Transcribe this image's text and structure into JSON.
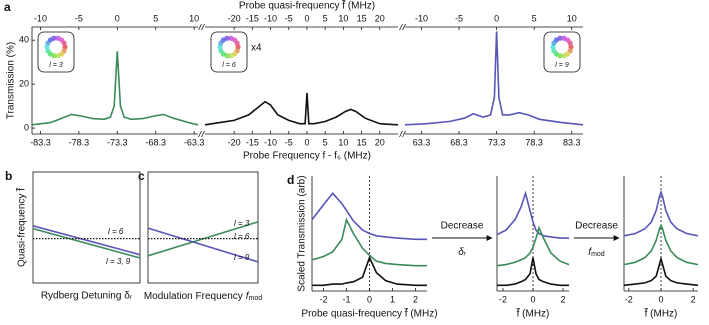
{
  "chart_data": [
    {
      "type": "line",
      "panel_label": "a",
      "y_label": "Transmission (%)",
      "x_label": "Probe Frequency f - f₆ (MHz)",
      "x2_label": "Probe quasi-frequency f̃ (MHz)",
      "ylim": [
        -2.7,
        46
      ],
      "yticks": [
        0,
        20,
        40
      ],
      "subplots": [
        {
          "xlim": [
            -84.4,
            -62.8
          ],
          "xticks": [
            -83.3,
            -78.3,
            -73.3,
            -68.3,
            -63.3
          ],
          "x2lim": [
            -11.1,
            10.5
          ],
          "x2ticks": [
            -10,
            -5,
            0,
            5,
            10
          ],
          "inset_label": "l = 3",
          "series": [
            {
              "color": "#3a8a5c",
              "x": [
                -84.4,
                -82,
                -80.5,
                -79.3,
                -78,
                -76.5,
                -75,
                -74.2,
                -73.7,
                -73.3,
                -72.9,
                -72.4,
                -71.5,
                -70,
                -68.5,
                -67.3,
                -66,
                -64,
                -62.8
              ],
              "values": [
                1.5,
                2.5,
                4.5,
                6.2,
                5.5,
                4.3,
                4,
                5,
                10,
                35,
                10,
                5,
                4,
                4.3,
                5.5,
                6.2,
                4.5,
                2.5,
                1.5
              ]
            }
          ]
        },
        {
          "xlim": [
            -28,
            25
          ],
          "xticks": [
            -20,
            -15,
            -10,
            -5,
            0,
            5,
            10,
            15,
            20
          ],
          "x2lim": [
            -28,
            25
          ],
          "x2ticks": [
            -20,
            -15,
            -10,
            -5,
            0,
            5,
            10,
            15,
            20
          ],
          "inset_label": "l = 6",
          "annotation": "x4",
          "series": [
            {
              "color": "#111111",
              "x": [
                -28,
                -24,
                -20,
                -16,
                -13,
                -11.5,
                -10,
                -8,
                -5,
                -2,
                -0.5,
                0,
                0.5,
                2,
                5,
                8,
                10.5,
                12,
                13.5,
                16,
                20,
                25
              ],
              "values": [
                1.5,
                2.5,
                3.5,
                6,
                10,
                12,
                10.5,
                6,
                3.5,
                2,
                2,
                16,
                2,
                2,
                3,
                5,
                7.5,
                8.5,
                7.5,
                4.5,
                2,
                1.5
              ]
            }
          ]
        },
        {
          "xlim": [
            61.1,
            84.8
          ],
          "xticks": [
            63.3,
            68.3,
            73.3,
            78.3,
            83.3
          ],
          "x2lim": [
            -12.2,
            11.5
          ],
          "x2ticks": [
            -10,
            -5,
            0,
            5,
            10
          ],
          "inset_label": "l = 9",
          "series": [
            {
              "color": "#5a55b8",
              "x": [
                61.1,
                64,
                67,
                69,
                70.2,
                71.5,
                72.5,
                73,
                73.3,
                73.6,
                74.1,
                75,
                76.3,
                77.5,
                79,
                82,
                84.8
              ],
              "values": [
                1.5,
                2,
                3,
                4.5,
                6.5,
                5,
                6,
                14,
                44,
                14,
                6,
                6,
                7,
                6,
                4,
                2.5,
                1.5
              ]
            }
          ]
        }
      ]
    },
    {
      "type": "line",
      "panel_label": "b",
      "x_label": "Rydberg Detuning δᵣ",
      "y_label": "Quasi-frequency f̃",
      "xlim": [
        0,
        1
      ],
      "ylim": [
        -0.8,
        1.2
      ],
      "x": [
        0,
        1
      ],
      "series": [
        {
          "color": "#5a55b8",
          "values": [
            0.23,
            -0.29
          ]
        },
        {
          "color": "#3a8a5c",
          "values": [
            0.18,
            -0.35
          ]
        },
        {
          "color": "#111111",
          "dash": true,
          "values": [
            0,
            0
          ]
        }
      ],
      "annotations": [
        {
          "text": "l = 6",
          "color": "#111111"
        },
        {
          "text": "l = 3, 9",
          "color": "#3f6f8f"
        }
      ]
    },
    {
      "type": "line",
      "panel_label": "c",
      "x_label": "Modulation Frequency",
      "x_symbol": "f",
      "x_sub": "mod",
      "xlim": [
        0,
        1
      ],
      "ylim": [
        -0.8,
        1.2
      ],
      "x": [
        0,
        1
      ],
      "series": [
        {
          "color": "#3a8a5c",
          "values": [
            -0.31,
            0.3
          ]
        },
        {
          "color": "#5a55b8",
          "values": [
            0.19,
            -0.42
          ]
        },
        {
          "color": "#111111",
          "dash": true,
          "values": [
            0,
            0
          ]
        }
      ],
      "annotations": [
        {
          "text": "l = 3",
          "color": "#3a8a5c"
        },
        {
          "text": "l = 6",
          "color": "#111111"
        },
        {
          "text": "l = 9",
          "color": "#5a55b8"
        }
      ]
    },
    {
      "type": "line",
      "panel_label": "d",
      "y_label": "Scaled Transmission (arb)",
      "ylim": [
        0,
        10
      ],
      "subplots": [
        {
          "x_label": "Probe quasi-frequency f̃ (MHz)",
          "xlim": [
            -2.5,
            2.5
          ],
          "xticks": [
            -2,
            -1,
            0,
            1,
            2
          ],
          "vline": 0,
          "x": [
            -2.5,
            -2,
            -1.6,
            -1.2,
            -1,
            -0.7,
            -0.3,
            0,
            0.3,
            0.7,
            1.2,
            2,
            2.5
          ],
          "series": [
            {
              "color": "#5a55b8",
              "values": [
                6.2,
                7.5,
                8.5,
                7.6,
                7,
                6.1,
                5.3,
                5,
                4.8,
                4.7,
                4.6,
                4.5,
                4.5
              ]
            },
            {
              "color": "#3a8a5c",
              "values": [
                2.7,
                3,
                3.4,
                4.5,
                6.2,
                5,
                3.7,
                3.1,
                2.6,
                2.4,
                2.3,
                2.2,
                2.2
              ]
            },
            {
              "color": "#111111",
              "values": [
                0.5,
                0.5,
                0.6,
                0.6,
                0.7,
                0.8,
                1.2,
                2.9,
                1.6,
                0.9,
                0.6,
                0.5,
                0.5
              ]
            }
          ]
        },
        {
          "x_label": "f̃ (MHz)",
          "xlim": [
            -2.4,
            2.4
          ],
          "xticks": [
            -2,
            0,
            2
          ],
          "vline": 0,
          "x": [
            -2.4,
            -1.8,
            -1.2,
            -0.8,
            -0.5,
            -0.2,
            0,
            0.2,
            0.4,
            0.7,
            1.2,
            1.8,
            2.4
          ],
          "series": [
            {
              "color": "#5a55b8",
              "values": [
                4.9,
                5.3,
                6.2,
                7.3,
                8.5,
                7,
                6,
                5.3,
                5,
                4.8,
                4.7,
                4.6,
                4.6
              ]
            },
            {
              "color": "#3a8a5c",
              "values": [
                2.2,
                2.3,
                2.5,
                2.7,
                2.9,
                3.3,
                3.8,
                4.6,
                5.5,
                4.6,
                3.3,
                2.6,
                2.3
              ]
            },
            {
              "color": "#111111",
              "values": [
                0.5,
                0.5,
                0.6,
                0.8,
                1,
                1.5,
                2.9,
                1.5,
                1,
                0.8,
                0.6,
                0.5,
                0.5
              ]
            }
          ]
        },
        {
          "x_label": "f̃ (MHz)",
          "xlim": [
            -2.3,
            2.3
          ],
          "xticks": [
            -2,
            0,
            2
          ],
          "vline": 0,
          "x": [
            -2.3,
            -1.6,
            -1,
            -0.6,
            -0.3,
            -0.1,
            0,
            0.1,
            0.3,
            0.6,
            1,
            1.6,
            2.3
          ],
          "series": [
            {
              "color": "#5a55b8",
              "values": [
                4.8,
                5,
                5.4,
                6,
                7,
                8.2,
                8.6,
                8.2,
                7,
                6,
                5.4,
                5,
                4.8
              ]
            },
            {
              "color": "#3a8a5c",
              "values": [
                2.3,
                2.5,
                2.9,
                3.5,
                4.4,
                5.4,
                5.7,
                5.4,
                4.4,
                3.5,
                2.9,
                2.5,
                2.3
              ]
            },
            {
              "color": "#111111",
              "values": [
                0.5,
                0.6,
                0.7,
                0.9,
                1.3,
                2.3,
                2.8,
                2.3,
                1.3,
                0.9,
                0.7,
                0.6,
                0.5
              ]
            }
          ]
        }
      ],
      "arrows": [
        {
          "text": "Decrease",
          "symbol": "δᵣ"
        },
        {
          "text": "Decrease",
          "symbol": "f",
          "sub": "mod"
        }
      ]
    }
  ]
}
